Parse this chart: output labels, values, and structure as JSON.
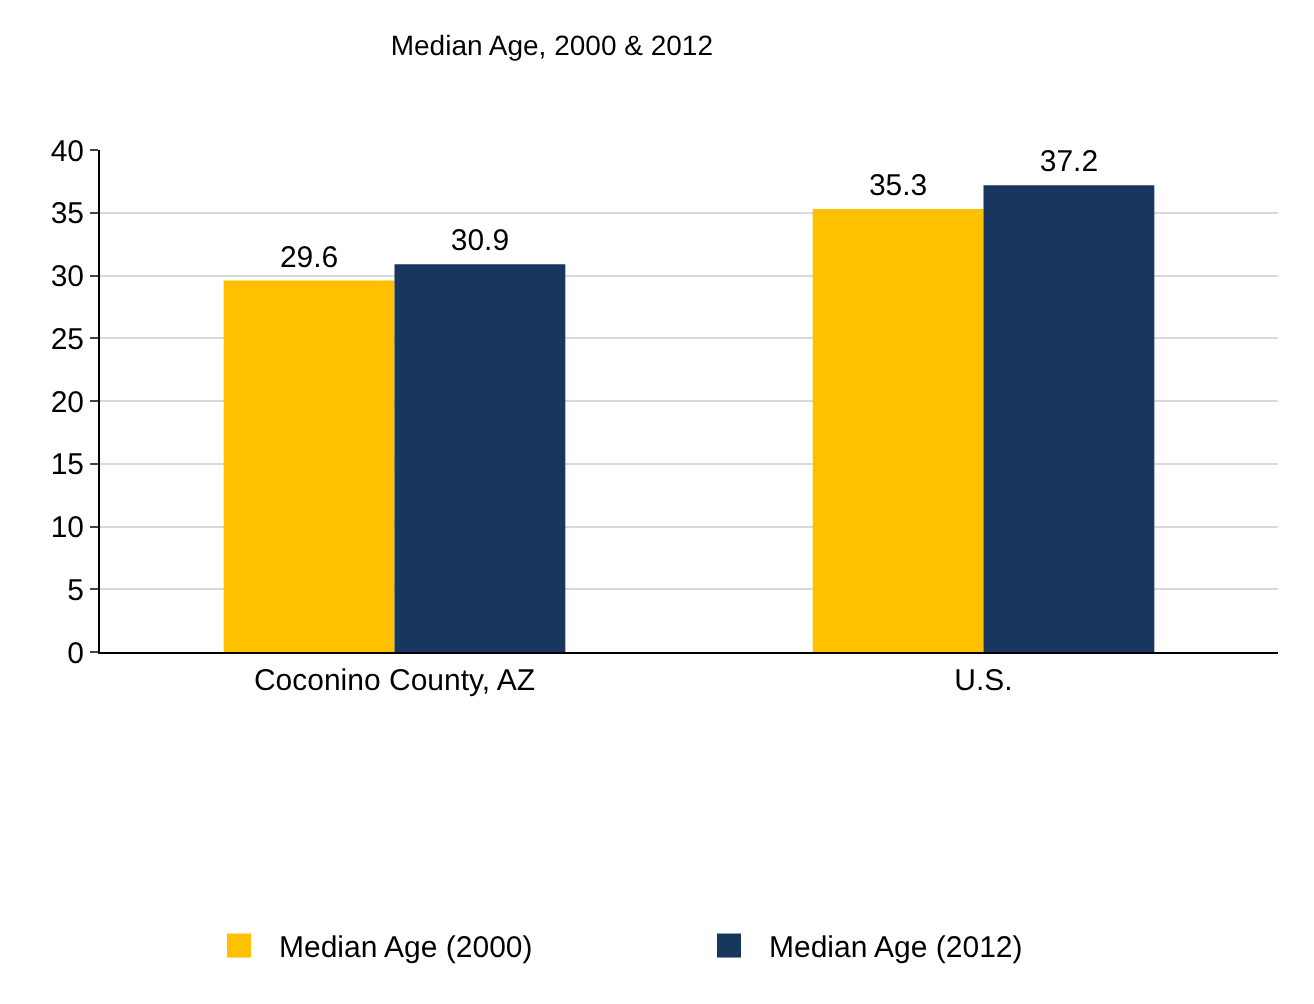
{
  "chart_data": {
    "type": "bar",
    "title": "Median Age, 2000 & 2012",
    "categories": [
      "Coconino County, AZ",
      "U.S."
    ],
    "series": [
      {
        "name": "Median Age (2000)",
        "color": "#ffc000",
        "values": [
          29.6,
          35.3
        ]
      },
      {
        "name": "Median Age (2012)",
        "color": "#17375e",
        "values": [
          30.9,
          37.2
        ]
      }
    ],
    "ylim": [
      0,
      40
    ],
    "yticks": [
      0,
      5,
      10,
      15,
      20,
      25,
      30,
      35,
      40
    ],
    "grid": "y",
    "legend": "bottom",
    "data_labels": true
  }
}
